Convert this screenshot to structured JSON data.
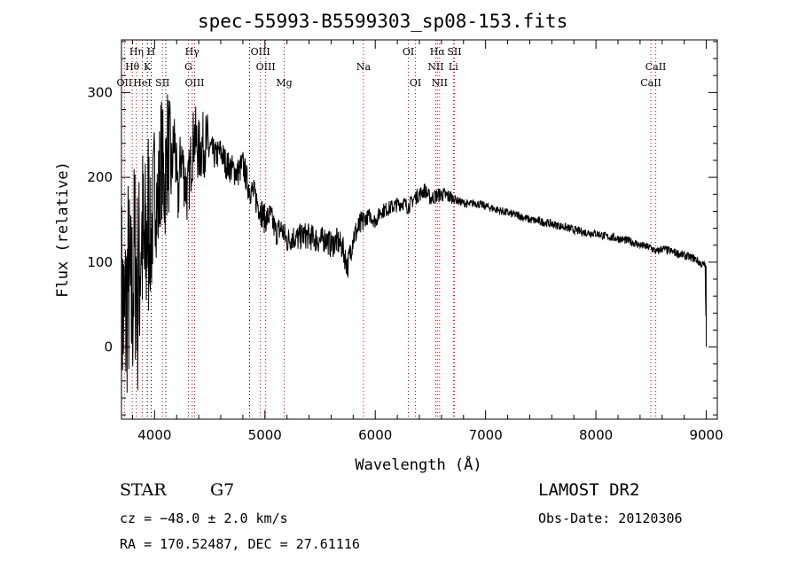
{
  "header": {
    "title": "spec-55993-B5599303_sp08-153.fits"
  },
  "footer": {
    "object_class": "STAR",
    "subclass": "G7",
    "survey": "LAMOST DR2",
    "cz": "cz = −48.0 ± 2.0 km/s",
    "obs_date": "Obs-Date: 20120306",
    "coords": "RA = 170.52487, DEC =  27.61116"
  },
  "chart_data": {
    "type": "line",
    "title": "spec-55993-B5599303_sp08-153.fits",
    "xlabel": "Wavelength (Å)",
    "ylabel": "Flux (relative)",
    "xlim": [
      3700,
      9100
    ],
    "ylim": [
      -85,
      362
    ],
    "xticks": [
      4000,
      5000,
      6000,
      7000,
      8000,
      9000
    ],
    "yticks": [
      0,
      100,
      200,
      300
    ],
    "grid": false,
    "line_color": "#000000",
    "marker_color": "#cc0000",
    "emission_lines": [
      {
        "label": "Hη",
        "x": 3836,
        "row": 0
      },
      {
        "label": "H",
        "x": 3969,
        "row": 0
      },
      {
        "label": "Hγ",
        "x": 4341,
        "row": 0
      },
      {
        "label": "OIII",
        "x": 4959,
        "row": 0
      },
      {
        "label": "OI",
        "x": 6300,
        "row": 0
      },
      {
        "label": "Hα",
        "x": 6563,
        "row": 0
      },
      {
        "label": "SII",
        "x": 6717,
        "row": 0
      },
      {
        "label": "Hθ",
        "x": 3798,
        "row": 1
      },
      {
        "label": "K",
        "x": 3934,
        "row": 1
      },
      {
        "label": "G",
        "x": 4307,
        "row": 1
      },
      {
        "label": "OIII",
        "x": 5007,
        "row": 1
      },
      {
        "label": "Na",
        "x": 5893,
        "row": 1
      },
      {
        "label": "NII",
        "x": 6548,
        "row": 1
      },
      {
        "label": "Li",
        "x": 6708,
        "row": 1
      },
      {
        "label": "CaII",
        "x": 8542,
        "row": 1
      },
      {
        "label": "OII",
        "x": 3727,
        "row": 2
      },
      {
        "label": "HeI",
        "x": 3889,
        "row": 2
      },
      {
        "label": "SII",
        "x": 4072,
        "row": 2
      },
      {
        "label": "OIII",
        "x": 4363,
        "row": 2
      },
      {
        "label": "Mg",
        "x": 5175,
        "row": 2
      },
      {
        "label": "OI",
        "x": 6364,
        "row": 2
      },
      {
        "label": "NII",
        "x": 6583,
        "row": 2
      },
      {
        "label": "CaII",
        "x": 8498,
        "row": 2
      }
    ],
    "absorption_markers": [
      3934,
      3969,
      4102,
      4861
    ],
    "series": [
      {
        "x": [
          3700,
          3730,
          3760,
          3790,
          3820,
          3850,
          3880,
          3910,
          3940,
          3970,
          4000,
          4030,
          4060,
          4090,
          4120,
          4150,
          4180,
          4210,
          4240,
          4270,
          4300,
          4330,
          4360,
          4400,
          4450,
          4500,
          4550,
          4600,
          4650,
          4700,
          4750,
          4800,
          4850,
          4900,
          4950,
          5000,
          5050,
          5100,
          5150,
          5200,
          5250,
          5300,
          5350,
          5400,
          5450,
          5500,
          5550,
          5600,
          5650,
          5700,
          5750,
          5800,
          5850,
          5900,
          5950,
          6000,
          6050,
          6100,
          6150,
          6200,
          6250,
          6300,
          6350,
          6400,
          6450,
          6500,
          6550,
          6600,
          6650,
          6700,
          6750,
          6800,
          6850,
          6900,
          6950,
          7000,
          7100,
          7200,
          7300,
          7400,
          7500,
          7600,
          7700,
          7800,
          7900,
          8000,
          8100,
          8200,
          8300,
          8400,
          8500,
          8550,
          8600,
          8700,
          8800,
          8900,
          8950,
          8990,
          9000
        ],
        "values": [
          60,
          20,
          80,
          40,
          110,
          60,
          140,
          90,
          150,
          120,
          200,
          160,
          230,
          190,
          240,
          200,
          250,
          170,
          230,
          200,
          180,
          220,
          250,
          230,
          240,
          235,
          225,
          230,
          215,
          210,
          205,
          215,
          190,
          180,
          165,
          150,
          155,
          135,
          140,
          125,
          130,
          128,
          132,
          130,
          128,
          125,
          128,
          120,
          125,
          118,
          95,
          130,
          140,
          150,
          155,
          148,
          160,
          162,
          165,
          168,
          170,
          165,
          175,
          180,
          185,
          175,
          178,
          180,
          178,
          176,
          172,
          170,
          168,
          170,
          168,
          166,
          162,
          158,
          155,
          150,
          148,
          145,
          142,
          138,
          135,
          134,
          130,
          128,
          125,
          120,
          117,
          112,
          116,
          112,
          108,
          104,
          98,
          96,
          0
        ]
      }
    ]
  }
}
